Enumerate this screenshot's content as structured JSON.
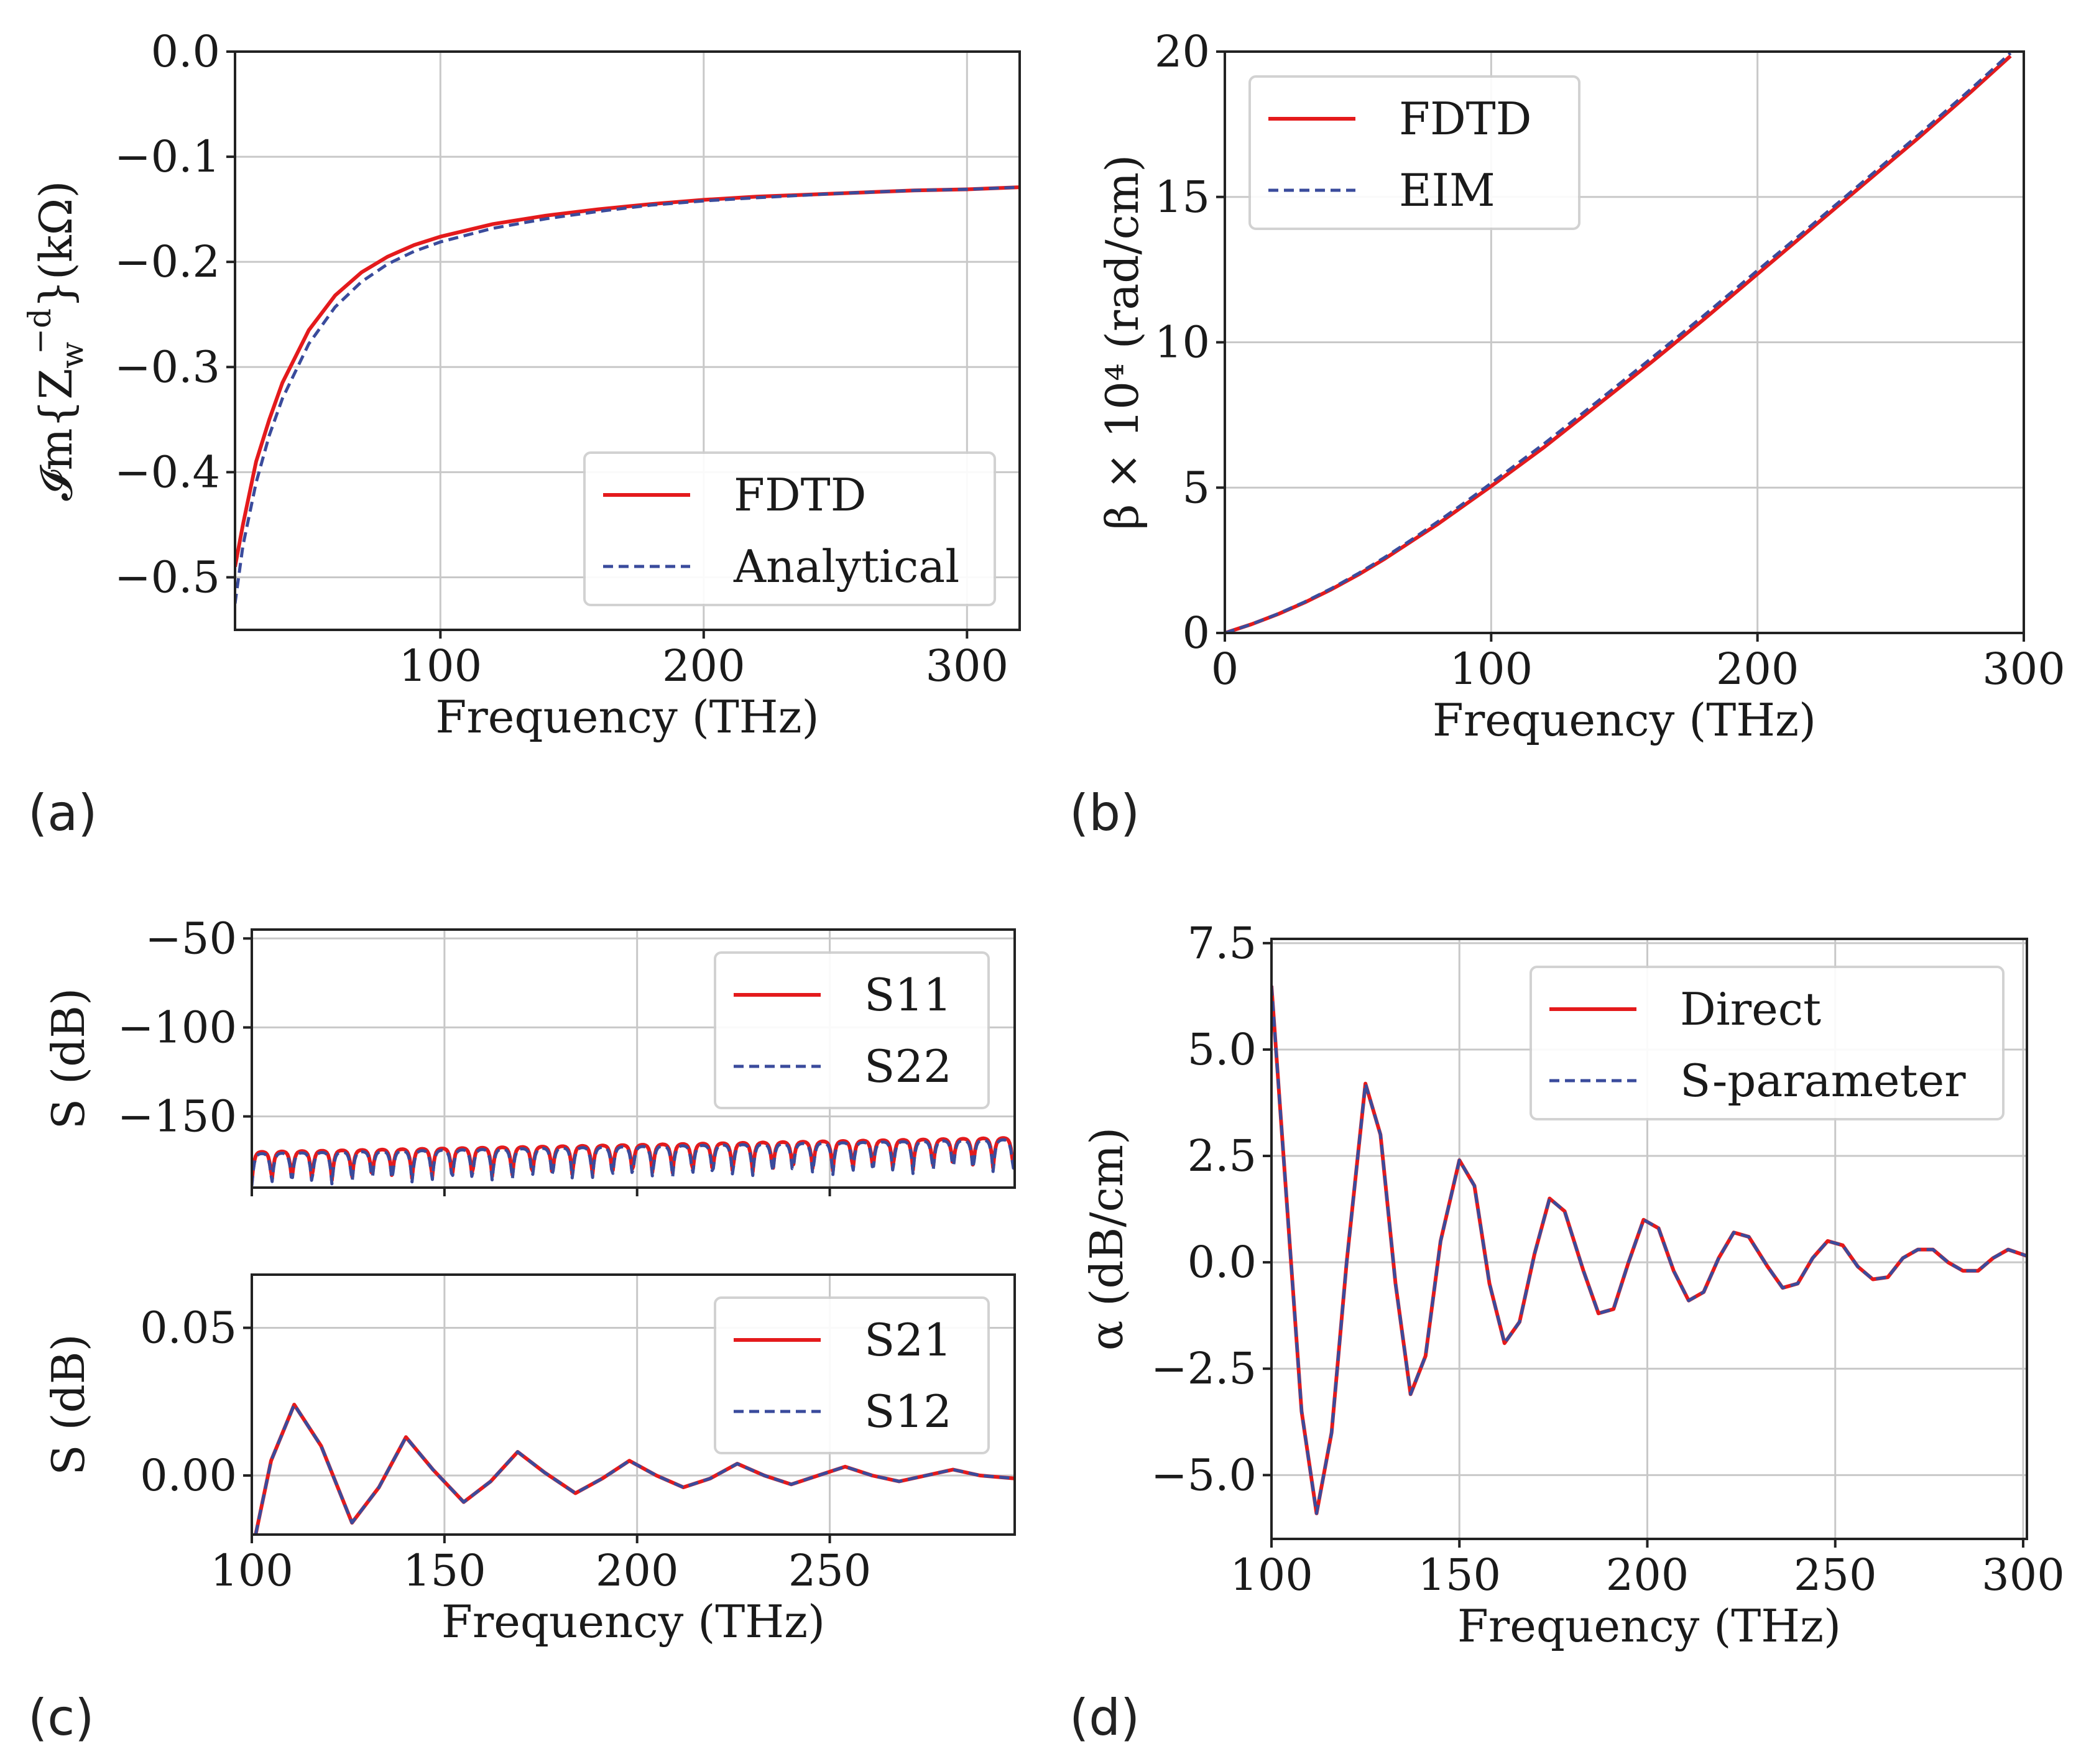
{
  "colors": {
    "red": "#e41a1c",
    "blue": "#3a4b9c",
    "grid": "#c8c8c8"
  },
  "panel_labels": [
    "(a)",
    "(b)",
    "(c)",
    "(d)"
  ],
  "chart_data": [
    {
      "id": "a",
      "type": "line",
      "panel_label": "(a)",
      "title": "",
      "xlabel": "Frequency (THz)",
      "ylabel": "Im{Z_w^-d} (kΩ)",
      "ylabel_parts": {
        "im": "𝓘m{Z",
        "sub": "w",
        "sup": "−d",
        "close": "}(kΩ)"
      },
      "xlim": [
        22,
        320
      ],
      "ylim": [
        -0.55,
        0.0
      ],
      "xticks": [
        100,
        200,
        300
      ],
      "xtick_labels": [
        "100",
        "200",
        "300"
      ],
      "yticks": [
        0.0,
        -0.1,
        -0.2,
        -0.3,
        -0.4,
        -0.5
      ],
      "ytick_labels": [
        "0.0",
        "−0.1",
        "−0.2",
        "−0.3",
        "−0.4",
        "−0.5"
      ],
      "legend": {
        "position": "lower-right",
        "entries": [
          "FDTD",
          "Analytical"
        ]
      },
      "series": [
        {
          "name": "FDTD",
          "style": "solid",
          "color": "red",
          "x": [
            22,
            25,
            30,
            35,
            40,
            50,
            60,
            70,
            80,
            90,
            100,
            120,
            140,
            160,
            180,
            200,
            220,
            250,
            280,
            300,
            320
          ],
          "y": [
            -0.49,
            -0.45,
            -0.39,
            -0.35,
            -0.315,
            -0.265,
            -0.232,
            -0.21,
            -0.195,
            -0.184,
            -0.176,
            -0.164,
            -0.156,
            -0.15,
            -0.145,
            -0.141,
            -0.138,
            -0.135,
            -0.132,
            -0.131,
            -0.129
          ]
        },
        {
          "name": "Analytical",
          "style": "dashed",
          "color": "blue",
          "x": [
            22,
            25,
            30,
            35,
            40,
            50,
            60,
            70,
            80,
            90,
            100,
            120,
            140,
            160,
            180,
            200,
            220,
            250,
            280,
            300,
            320
          ],
          "y": [
            -0.525,
            -0.47,
            -0.41,
            -0.365,
            -0.33,
            -0.278,
            -0.243,
            -0.219,
            -0.202,
            -0.19,
            -0.181,
            -0.168,
            -0.159,
            -0.152,
            -0.146,
            -0.142,
            -0.139,
            -0.135,
            -0.132,
            -0.131,
            -0.129
          ]
        }
      ]
    },
    {
      "id": "b",
      "type": "line",
      "panel_label": "(b)",
      "title": "",
      "xlabel": "Frequency (THz)",
      "ylabel": "β × 10⁴ (rad/cm)",
      "xlim": [
        0,
        300
      ],
      "ylim": [
        0,
        20
      ],
      "xticks": [
        0,
        100,
        200,
        300
      ],
      "xtick_labels": [
        "0",
        "100",
        "200",
        "300"
      ],
      "yticks": [
        0,
        5,
        10,
        15,
        20
      ],
      "ytick_labels": [
        "0",
        "5",
        "10",
        "15",
        "20"
      ],
      "legend": {
        "position": "top-left",
        "entries": [
          "FDTD",
          "EIM"
        ]
      },
      "series": [
        {
          "name": "FDTD",
          "style": "solid",
          "color": "red",
          "x": [
            0,
            10,
            20,
            30,
            40,
            50,
            60,
            70,
            80,
            90,
            100,
            120,
            140,
            160,
            180,
            200,
            220,
            240,
            260,
            280,
            295
          ],
          "y": [
            0,
            0.3,
            0.65,
            1.05,
            1.5,
            2.0,
            2.55,
            3.15,
            3.75,
            4.4,
            5.05,
            6.4,
            7.85,
            9.3,
            10.8,
            12.35,
            13.9,
            15.45,
            17.0,
            18.6,
            19.85
          ]
        },
        {
          "name": "EIM",
          "style": "dashed",
          "color": "blue",
          "x": [
            0,
            10,
            20,
            30,
            40,
            50,
            60,
            70,
            80,
            90,
            100,
            120,
            140,
            160,
            180,
            200,
            220,
            240,
            260,
            280,
            295
          ],
          "y": [
            0,
            0.3,
            0.66,
            1.07,
            1.53,
            2.04,
            2.6,
            3.2,
            3.83,
            4.48,
            5.15,
            6.52,
            7.97,
            9.44,
            10.93,
            12.47,
            14.0,
            15.55,
            17.1,
            18.7,
            19.95
          ]
        }
      ]
    },
    {
      "id": "c_top",
      "type": "line",
      "panel_label": "(c)",
      "title": "",
      "xlabel": "",
      "ylabel": "S (dB)",
      "xlim": [
        100,
        298
      ],
      "ylim": [
        -190,
        -45
      ],
      "xticks": [
        100,
        150,
        200,
        250
      ],
      "xtick_labels": [
        "",
        "",
        "",
        ""
      ],
      "yticks": [
        -50,
        -100,
        -150
      ],
      "ytick_labels": [
        "−50",
        "−100",
        "−150"
      ],
      "legend": {
        "position": "top-right",
        "entries": [
          "S11",
          "S22"
        ]
      },
      "series": [
        {
          "name": "S11",
          "style": "solid",
          "color": "red",
          "oscillation": {
            "base_start": -170,
            "base_end": -162,
            "ripple_period": 5.2,
            "dip_depth": 14
          }
        },
        {
          "name": "S22",
          "style": "dashed",
          "color": "blue",
          "oscillation": {
            "base_start": -171,
            "base_end": -163,
            "ripple_period": 5.2,
            "dip_depth": 15
          }
        }
      ]
    },
    {
      "id": "c_bottom",
      "type": "line",
      "panel_label": "(c)",
      "title": "",
      "xlabel": "Frequency (THz)",
      "ylabel": "S (dB)",
      "xlim": [
        100,
        298
      ],
      "ylim": [
        -0.02,
        0.068
      ],
      "xticks": [
        100,
        150,
        200,
        250
      ],
      "xtick_labels": [
        "100",
        "150",
        "200",
        "250"
      ],
      "yticks": [
        0.05,
        0.0
      ],
      "ytick_labels": [
        "0.05",
        "0.00"
      ],
      "legend": {
        "position": "top-right",
        "entries": [
          "S21",
          "S12"
        ]
      },
      "series": [
        {
          "name": "S21",
          "style": "solid",
          "color": "red",
          "x": [
            101,
            105,
            111,
            118,
            126,
            133,
            140,
            147,
            155,
            162,
            169,
            176,
            184,
            191,
            198,
            205,
            212,
            219,
            226,
            233,
            240,
            247,
            254,
            261,
            268,
            275,
            282,
            289,
            298
          ],
          "y": [
            -0.02,
            0.005,
            0.024,
            0.01,
            -0.016,
            -0.004,
            0.013,
            0.002,
            -0.009,
            -0.002,
            0.008,
            0.001,
            -0.006,
            -0.001,
            0.005,
            0.0,
            -0.004,
            -0.001,
            0.004,
            0.0,
            -0.003,
            0.0,
            0.003,
            0.0,
            -0.002,
            0.0,
            0.002,
            0.0,
            -0.001
          ]
        },
        {
          "name": "S12",
          "style": "dashed",
          "color": "blue",
          "x": [
            101,
            105,
            111,
            118,
            126,
            133,
            140,
            147,
            155,
            162,
            169,
            176,
            184,
            191,
            198,
            205,
            212,
            219,
            226,
            233,
            240,
            247,
            254,
            261,
            268,
            275,
            282,
            289,
            298
          ],
          "y": [
            -0.02,
            0.005,
            0.024,
            0.01,
            -0.016,
            -0.004,
            0.013,
            0.002,
            -0.009,
            -0.002,
            0.008,
            0.001,
            -0.006,
            -0.001,
            0.005,
            0.0,
            -0.004,
            -0.001,
            0.004,
            0.0,
            -0.003,
            0.0,
            0.003,
            0.0,
            -0.002,
            0.0,
            0.002,
            0.0,
            -0.001
          ]
        }
      ]
    },
    {
      "id": "d",
      "type": "line",
      "panel_label": "(d)",
      "title": "",
      "xlabel": "Frequency (THz)",
      "ylabel": "α (dB/cm)",
      "xlim": [
        100,
        301
      ],
      "ylim": [
        -6.5,
        7.6
      ],
      "xticks": [
        100,
        150,
        200,
        250,
        300
      ],
      "xtick_labels": [
        "100",
        "150",
        "200",
        "250",
        "300"
      ],
      "yticks": [
        7.5,
        5.0,
        2.5,
        0.0,
        -2.5,
        -5.0
      ],
      "ytick_labels": [
        "7.5",
        "5.0",
        "2.5",
        "0.0",
        "−2.5",
        "−5.0"
      ],
      "legend": {
        "position": "top-right",
        "entries": [
          "Direct",
          "S-parameter"
        ]
      },
      "series": [
        {
          "name": "Direct",
          "style": "solid",
          "color": "red",
          "x": [
            100,
            104,
            108,
            112,
            116,
            120,
            125,
            129,
            133,
            137,
            141,
            145,
            150,
            154,
            158,
            162,
            166,
            170,
            174,
            178,
            183,
            187,
            191,
            195,
            199,
            203,
            207,
            211,
            215,
            219,
            223,
            227,
            232,
            236,
            240,
            244,
            248,
            252,
            256,
            260,
            264,
            268,
            272,
            276,
            280,
            284,
            288,
            292,
            296,
            301
          ],
          "y": [
            6.5,
            1.5,
            -3.5,
            -5.9,
            -4.0,
            0.0,
            4.2,
            3.0,
            -0.5,
            -3.1,
            -2.2,
            0.5,
            2.4,
            1.8,
            -0.5,
            -1.9,
            -1.4,
            0.2,
            1.5,
            1.2,
            -0.2,
            -1.2,
            -1.1,
            0.0,
            1.0,
            0.8,
            -0.2,
            -0.9,
            -0.7,
            0.1,
            0.7,
            0.6,
            -0.1,
            -0.6,
            -0.5,
            0.1,
            0.5,
            0.4,
            -0.1,
            -0.4,
            -0.35,
            0.1,
            0.3,
            0.3,
            0.0,
            -0.2,
            -0.2,
            0.1,
            0.3,
            0.15
          ]
        },
        {
          "name": "S-parameter",
          "style": "dashed",
          "color": "blue",
          "x": [
            100,
            104,
            108,
            112,
            116,
            120,
            125,
            129,
            133,
            137,
            141,
            145,
            150,
            154,
            158,
            162,
            166,
            170,
            174,
            178,
            183,
            187,
            191,
            195,
            199,
            203,
            207,
            211,
            215,
            219,
            223,
            227,
            232,
            236,
            240,
            244,
            248,
            252,
            256,
            260,
            264,
            268,
            272,
            276,
            280,
            284,
            288,
            292,
            296,
            301
          ],
          "y": [
            6.5,
            1.5,
            -3.5,
            -5.9,
            -4.0,
            0.0,
            4.2,
            3.0,
            -0.5,
            -3.1,
            -2.2,
            0.5,
            2.4,
            1.8,
            -0.5,
            -1.9,
            -1.4,
            0.2,
            1.5,
            1.2,
            -0.2,
            -1.2,
            -1.1,
            0.0,
            1.0,
            0.8,
            -0.2,
            -0.9,
            -0.7,
            0.1,
            0.7,
            0.6,
            -0.1,
            -0.6,
            -0.5,
            0.1,
            0.5,
            0.4,
            -0.1,
            -0.4,
            -0.35,
            0.1,
            0.3,
            0.3,
            0.0,
            -0.2,
            -0.2,
            0.1,
            0.3,
            0.15
          ]
        }
      ]
    }
  ]
}
